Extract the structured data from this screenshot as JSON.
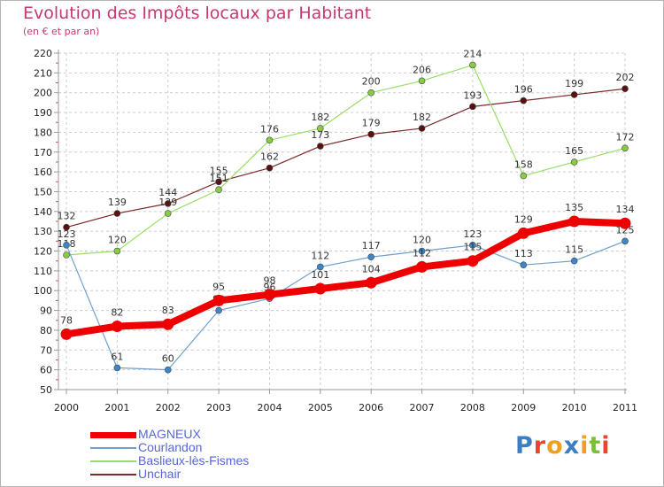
{
  "header": {
    "title": "Evolution des Impôts locaux par Habitant",
    "subtitle": "(en € et par an)"
  },
  "logo": {
    "text": "Proxiti",
    "colors": [
      "#3a7fc4",
      "#e8452c",
      "#f0a020",
      "#3a7fc4",
      "#f0a020",
      "#7bbf3a",
      "#e8452c"
    ]
  },
  "colors": {
    "title": "#c4396f",
    "grid": "#cccccc",
    "axis": "#999999",
    "legend_text": "#5566dd"
  },
  "chart_data": {
    "type": "line",
    "title": "Evolution des Impôts locaux par Habitant",
    "subtitle": "(en € et par an)",
    "x": [
      "2000",
      "2001",
      "2002",
      "2003",
      "2004",
      "2005",
      "2006",
      "2007",
      "2008",
      "2009",
      "2010",
      "2011"
    ],
    "ylim": [
      50,
      220
    ],
    "ystep": 10,
    "yticks": [
      "50",
      "60",
      "70",
      "80",
      "90",
      "100",
      "110",
      "120",
      "130",
      "140",
      "150",
      "160",
      "170",
      "180",
      "190",
      "200",
      "210",
      "220"
    ],
    "grid": "horizontal dashed",
    "legend": "bottom-left",
    "series": [
      {
        "name": "Unchair",
        "color": "#7a2a2a",
        "pointColor": "#5a1010",
        "width": 1.2,
        "radius": 3.5,
        "values": [
          132,
          139,
          144,
          155,
          162,
          173,
          179,
          182,
          193,
          196,
          199,
          202
        ]
      },
      {
        "name": "Baslieux-lès-Fismes",
        "color": "#99dd66",
        "pointColor": "#88cc44",
        "width": 1.2,
        "radius": 3.5,
        "values": [
          118,
          120,
          139,
          151,
          176,
          182,
          200,
          206,
          214,
          158,
          165,
          172
        ]
      },
      {
        "name": "Courlandon",
        "color": "#6fa0cc",
        "pointColor": "#3d86c8",
        "width": 1.2,
        "radius": 3.5,
        "values": [
          123,
          61,
          60,
          90,
          96,
          112,
          117,
          120,
          123,
          113,
          115,
          125
        ]
      },
      {
        "name": "MAGNEUX",
        "color": "#ee0000",
        "pointColor": "#ee0000",
        "width": 8,
        "radius": 6.5,
        "values": [
          78,
          82,
          83,
          95,
          98,
          101,
          104,
          112,
          115,
          129,
          135,
          134
        ]
      }
    ]
  },
  "legend_items": [
    {
      "name": "MAGNEUX",
      "color": "#ee0000",
      "height": 7
    },
    {
      "name": "Courlandon",
      "color": "#6fa0cc",
      "height": 2
    },
    {
      "name": "Baslieux-lès-Fismes",
      "color": "#99dd66",
      "height": 2
    },
    {
      "name": "Unchair",
      "color": "#7a2a2a",
      "height": 2
    }
  ]
}
